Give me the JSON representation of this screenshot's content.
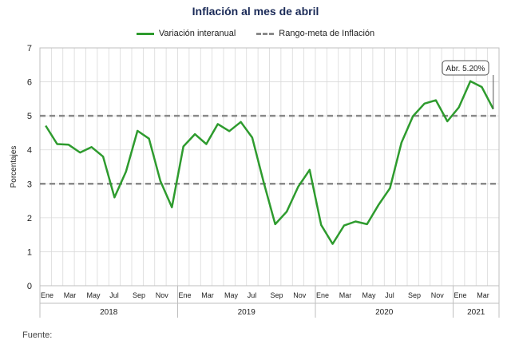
{
  "chart_data": {
    "type": "line",
    "title": "Inflación al mes de abril",
    "ylabel": "Porcentajes",
    "ylim": [
      0,
      7
    ],
    "yticks": [
      0,
      1,
      2,
      3,
      4,
      5,
      6,
      7
    ],
    "grid": true,
    "legend_position": "top-center",
    "x": [
      "2018-01",
      "2018-02",
      "2018-03",
      "2018-04",
      "2018-05",
      "2018-06",
      "2018-07",
      "2018-08",
      "2018-09",
      "2018-10",
      "2018-11",
      "2018-12",
      "2019-01",
      "2019-02",
      "2019-03",
      "2019-04",
      "2019-05",
      "2019-06",
      "2019-07",
      "2019-08",
      "2019-09",
      "2019-10",
      "2019-11",
      "2019-12",
      "2020-01",
      "2020-02",
      "2020-03",
      "2020-04",
      "2020-05",
      "2020-06",
      "2020-07",
      "2020-08",
      "2020-09",
      "2020-10",
      "2020-11",
      "2020-12",
      "2021-01",
      "2021-02",
      "2021-03",
      "2021-04"
    ],
    "month_tick_labels": [
      "Ene",
      "Mar",
      "May",
      "Jul",
      "Sep",
      "Nov",
      "Ene",
      "Mar",
      "May",
      "Jul",
      "Sep",
      "Nov",
      "Ene",
      "Mar",
      "May",
      "Jul",
      "Sep",
      "Nov",
      "Ene",
      "Mar"
    ],
    "year_labels": [
      "2018",
      "2019",
      "2020",
      "2021"
    ],
    "series": [
      {
        "name": "Variación interanual",
        "color": "#2e9b2e",
        "style": "solid",
        "values": [
          4.71,
          4.17,
          4.15,
          3.92,
          4.08,
          3.8,
          2.6,
          3.36,
          4.56,
          4.33,
          3.08,
          2.31,
          4.1,
          4.46,
          4.17,
          4.76,
          4.55,
          4.82,
          4.36,
          3.04,
          1.81,
          2.18,
          2.91,
          3.41,
          1.79,
          1.23,
          1.77,
          1.89,
          1.81,
          2.38,
          2.87,
          4.21,
          4.99,
          5.36,
          5.46,
          4.84,
          5.25,
          6.02,
          5.85,
          5.2
        ]
      },
      {
        "name": "Rango-meta de Inflación",
        "color": "#8a8a8a",
        "style": "dashed",
        "band": [
          3,
          5
        ]
      }
    ],
    "annotation": {
      "text": "Abr. 5.20%",
      "x": "2021-04",
      "y": 5.2
    }
  },
  "footer": {
    "source_label": "Fuente:"
  }
}
